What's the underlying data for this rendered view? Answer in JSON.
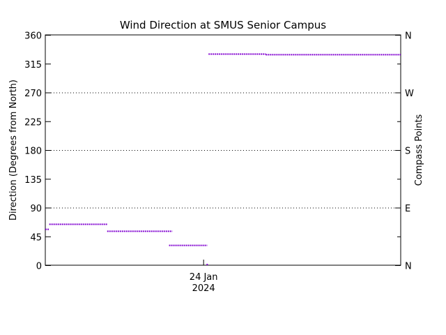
{
  "chart_data": {
    "type": "scatter",
    "title": "Wind Direction at SMUS Senior Campus",
    "ylabel": "Direction (Degrees from North)",
    "ylabel_right": "Compass Points",
    "ylim": [
      0,
      360
    ],
    "yticks": [
      0,
      45,
      90,
      135,
      180,
      225,
      270,
      315,
      360
    ],
    "right_ticks": [
      {
        "value": 0,
        "label": "N"
      },
      {
        "value": 90,
        "label": "E"
      },
      {
        "value": 180,
        "label": "S"
      },
      {
        "value": 270,
        "label": "W"
      },
      {
        "value": 360,
        "label": "N"
      }
    ],
    "grid_y": [
      90,
      180,
      270
    ],
    "xlim_hours": [
      -24,
      30
    ],
    "x_tick": {
      "hour": 0,
      "line1": "24 Jan",
      "line2": "2024"
    },
    "series": [
      {
        "color": "#8000d0",
        "segments": [
          {
            "x_start": -24,
            "x_end": -23.4,
            "value": 56
          },
          {
            "x_start": -23.4,
            "x_end": -14.6,
            "value": 64
          },
          {
            "x_start": -14.6,
            "x_end": -4.7,
            "value": 53
          },
          {
            "x_start": -5.2,
            "x_end": 0.6,
            "value": 31
          },
          {
            "x_start": 0.8,
            "x_end": 9.5,
            "value": 330
          },
          {
            "x_start": 9.5,
            "x_end": 30,
            "value": 329
          }
        ]
      }
    ],
    "isolated_points": [
      {
        "x": 0.6,
        "value": 0
      }
    ]
  }
}
